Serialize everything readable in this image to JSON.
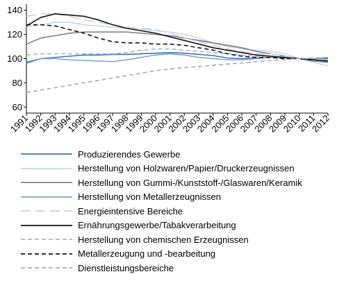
{
  "chart_data": {
    "type": "line",
    "title": "",
    "xlabel": "",
    "ylabel": "",
    "x": [
      1991,
      1992,
      1993,
      1994,
      1995,
      1996,
      1997,
      1998,
      1999,
      2000,
      2001,
      2002,
      2003,
      2004,
      2005,
      2006,
      2007,
      2008,
      2009,
      2010,
      2011,
      2012
    ],
    "x_tick_labels": [
      "1991",
      "1992",
      "1993",
      "1994",
      "1995",
      "1996",
      "1997",
      "1998",
      "1999",
      "2000",
      "2001",
      "2002",
      "2003",
      "2004",
      "2005",
      "2006",
      "2007",
      "2008",
      "2009",
      "2010",
      "2011",
      "2012"
    ],
    "ylim": [
      55,
      145
    ],
    "y_ticks": [
      60,
      80,
      100,
      120,
      140
    ],
    "y_tick_labels": [
      "60",
      "80",
      "100",
      "120",
      "140"
    ],
    "grid": false,
    "legend_position": "bottom",
    "series": [
      {
        "name": "Produzierendes Gewerbe",
        "color": "#3a73b2",
        "dash": "solid",
        "values": [
          97,
          100,
          101,
          102,
          103,
          103,
          103.5,
          103.5,
          104,
          104.5,
          105,
          104.5,
          103.5,
          102.5,
          100.5,
          100,
          100.5,
          101,
          100.5,
          100,
          100,
          100
        ]
      },
      {
        "name": "Herstellung von Holzwaren/Papier/Druckerzeugnissen",
        "color": "#c9d5e8",
        "dash": "solid",
        "values": [
          126,
          128,
          130,
          130,
          128,
          127,
          126,
          125,
          124,
          123,
          122,
          120,
          117,
          113,
          110,
          108,
          107,
          106,
          104,
          100,
          97,
          94
        ]
      },
      {
        "name": "Herstellung von Gummi-/Kunststoff-/Glaswaren/Keramik",
        "color": "#7d7d7d",
        "dash": "solid",
        "values": [
          112,
          117,
          119,
          121,
          122,
          122,
          122,
          122,
          121,
          120,
          119,
          117,
          115,
          113,
          111,
          109,
          106,
          104,
          102,
          100,
          98,
          97
        ]
      },
      {
        "name": "Herstellung von Metallerzeugnissen",
        "color": "#7ea0cf",
        "dash": "solid",
        "values": [
          96,
          100,
          100,
          99,
          98.5,
          98,
          97.5,
          99,
          101,
          103,
          104,
          103,
          101,
          100,
          99,
          99,
          100,
          101,
          100,
          100,
          100,
          101
        ]
      },
      {
        "name": "Energieintensive Bereiche",
        "color": "#cfcfcf",
        "dash": "longdash",
        "values": [
          135,
          137,
          137,
          135,
          132,
          130,
          128,
          126,
          125,
          124,
          121,
          117,
          114,
          111,
          108,
          106,
          104,
          104,
          102,
          100,
          99,
          98
        ]
      },
      {
        "name": "Ernährungsgewerbe/Tabakverarbeitung",
        "color": "#111111",
        "dash": "solid",
        "values": [
          127,
          134,
          137,
          136,
          135,
          132,
          128,
          125,
          123,
          121,
          118,
          115,
          112,
          109,
          107,
          105,
          103,
          102,
          101,
          100,
          99,
          98
        ]
      },
      {
        "name": "Herstellung von chemischen Erzeugnissen",
        "color": "#9bb6dc",
        "dash": "dashed",
        "values": [
          103,
          104,
          104,
          104,
          104,
          104,
          104,
          105,
          107,
          108,
          108,
          107,
          106,
          105,
          104,
          103,
          102,
          101,
          100,
          100,
          100,
          99
        ]
      },
      {
        "name": "Metallerzeugung und -bearbeitung",
        "color": "#111111",
        "dash": "dashed",
        "values": [
          128,
          128,
          127,
          124,
          121,
          117,
          114,
          113,
          113,
          112,
          112,
          111,
          109,
          107,
          104,
          102,
          101,
          101,
          100,
          100,
          99,
          98
        ]
      },
      {
        "name": "Dienstleistungsbereiche",
        "color": "#a9a9a9",
        "dash": "dashed",
        "values": [
          72,
          74,
          76,
          78,
          80,
          82,
          84,
          86,
          88,
          90,
          91.5,
          92.5,
          93.5,
          94.5,
          95.5,
          96.5,
          97.5,
          98.5,
          99.2,
          100,
          100.6,
          101
        ]
      }
    ]
  }
}
